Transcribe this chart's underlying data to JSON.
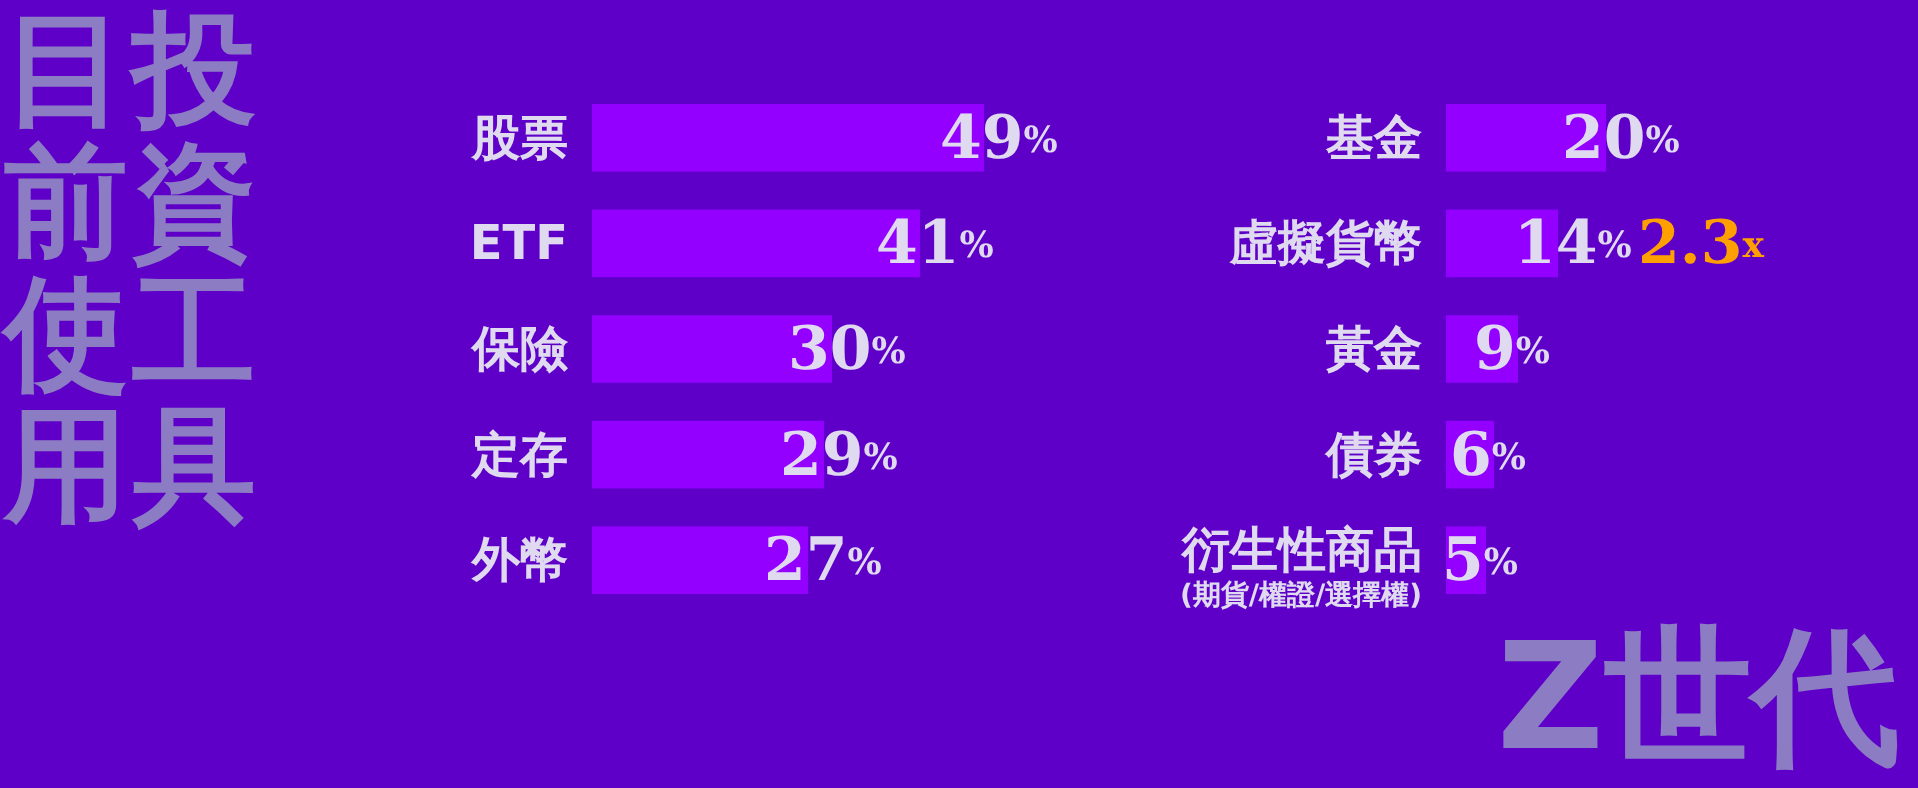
{
  "chart_data": [
    {
      "type": "bar",
      "orientation": "horizontal",
      "title": "目前使用投資工具",
      "categories": [
        "股票",
        "ETF",
        "保險",
        "定存",
        "外幣"
      ],
      "series": [
        {
          "color": "#9400ff",
          "values": [
            49,
            41,
            30,
            29,
            27
          ],
          "value_labels": [
            "49%",
            "41%",
            "30%",
            "29%",
            "27%"
          ]
        }
      ]
    },
    {
      "type": "bar",
      "orientation": "horizontal",
      "subtitle": "Z世代",
      "categories": [
        "基金",
        "虛擬貨幣",
        "黃金",
        "債券",
        "衍生性商品$_{(期貨/權證/選擇權)}$"
      ],
      "series": [
        {
          "color": "#9400ff",
          "values": [
            20,
            14,
            9,
            6,
            5
          ],
          "value_labels": [
            "20%",
            "14%",
            "9%",
            "6%",
            "5%"
          ]
        }
      ],
      "annotations": [
        {
          "text": "2.3x",
          "x": 14,
          "y": "虛擬貨幣"
        }
      ]
    }
  ]
}
